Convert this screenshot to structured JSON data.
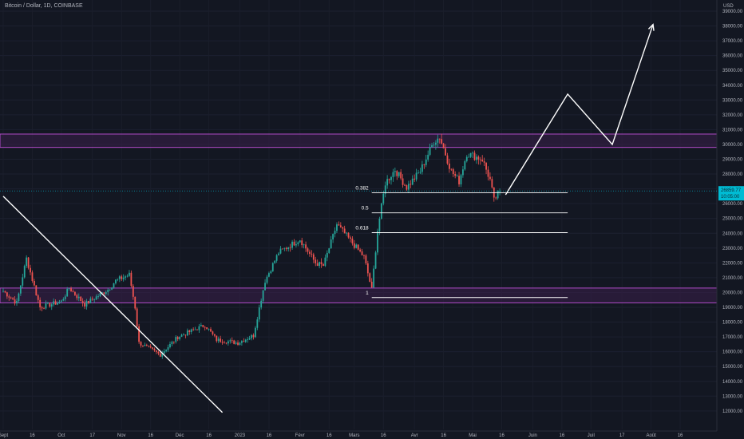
{
  "header": {
    "title": "Bitcoin / Dollar, 1D, COINBASE"
  },
  "price_axis": {
    "unit": "USD"
  },
  "last_price": {
    "value": "26859.77",
    "sub": "10:05:00",
    "color": "#00bcd4"
  },
  "colors": {
    "up": "#26a69a",
    "down": "#ef5350",
    "zone_border": "#b04bc8",
    "zone_fill": "#3a1f4a",
    "line": "#ffffff"
  },
  "chart_data": {
    "type": "candlestick",
    "title": "Bitcoin / Dollar, 1D, COINBASE",
    "xlabel": "",
    "ylabel": "USD",
    "ylim": [
      11500,
      39500
    ],
    "x_tick_labels": [
      "Sept",
      "16",
      "Oct",
      "17",
      "Nov",
      "16",
      "Déc",
      "16",
      "2023",
      "16",
      "Févr",
      "16",
      "Mars",
      "16",
      "Avr",
      "16",
      "Mai",
      "16",
      "Juin",
      "16",
      "Juil",
      "17",
      "Août",
      "16"
    ],
    "y_tick_labels": [
      "12000.00",
      "13000.00",
      "14000.00",
      "15000.00",
      "16000.00",
      "17000.00",
      "18000.00",
      "19000.00",
      "20000.00",
      "21000.00",
      "22000.00",
      "23000.00",
      "24000.00",
      "25000.00",
      "26000.00",
      "27000.00",
      "28000.00",
      "29000.00",
      "30000.00",
      "31000.00",
      "32000.00",
      "33000.00",
      "34000.00",
      "35000.00",
      "36000.00",
      "37000.00",
      "38000.00",
      "39000.00"
    ],
    "price_path_anchors": [
      {
        "date": "2022-09-01",
        "price": 20100
      },
      {
        "date": "2022-09-08",
        "price": 19300
      },
      {
        "date": "2022-09-13",
        "price": 22300
      },
      {
        "date": "2022-09-20",
        "price": 19000
      },
      {
        "date": "2022-10-01",
        "price": 19400
      },
      {
        "date": "2022-10-05",
        "price": 20300
      },
      {
        "date": "2022-10-13",
        "price": 19200
      },
      {
        "date": "2022-10-25",
        "price": 20200
      },
      {
        "date": "2022-10-29",
        "price": 20800
      },
      {
        "date": "2022-11-05",
        "price": 21200
      },
      {
        "date": "2022-11-08",
        "price": 19000
      },
      {
        "date": "2022-11-10",
        "price": 16600
      },
      {
        "date": "2022-11-21",
        "price": 15800
      },
      {
        "date": "2022-11-30",
        "price": 17000
      },
      {
        "date": "2022-12-14",
        "price": 17800
      },
      {
        "date": "2022-12-20",
        "price": 16800
      },
      {
        "date": "2022-12-31",
        "price": 16600
      },
      {
        "date": "2023-01-08",
        "price": 17100
      },
      {
        "date": "2023-01-14",
        "price": 20800
      },
      {
        "date": "2023-01-21",
        "price": 22700
      },
      {
        "date": "2023-02-01",
        "price": 23600
      },
      {
        "date": "2023-02-09",
        "price": 22000
      },
      {
        "date": "2023-02-13",
        "price": 21800
      },
      {
        "date": "2023-02-20",
        "price": 24600
      },
      {
        "date": "2023-02-27",
        "price": 23500
      },
      {
        "date": "2023-03-06",
        "price": 22400
      },
      {
        "date": "2023-03-10",
        "price": 20200
      },
      {
        "date": "2023-03-13",
        "price": 24200
      },
      {
        "date": "2023-03-17",
        "price": 27400
      },
      {
        "date": "2023-03-22",
        "price": 28300
      },
      {
        "date": "2023-03-28",
        "price": 27100
      },
      {
        "date": "2023-04-04",
        "price": 28200
      },
      {
        "date": "2023-04-11",
        "price": 30200
      },
      {
        "date": "2023-04-14",
        "price": 30500
      },
      {
        "date": "2023-04-20",
        "price": 28200
      },
      {
        "date": "2023-04-24",
        "price": 27500
      },
      {
        "date": "2023-04-28",
        "price": 29400
      },
      {
        "date": "2023-05-06",
        "price": 29000
      },
      {
        "date": "2023-05-10",
        "price": 27600
      },
      {
        "date": "2023-05-12",
        "price": 26200
      },
      {
        "date": "2023-05-15",
        "price": 26859.77
      }
    ],
    "resistance_zone": [
      29800,
      30700
    ],
    "support_zone": [
      19300,
      20300
    ],
    "fibonacci_levels": [
      {
        "label": "0.382",
        "price": 26730
      },
      {
        "label": "0.5",
        "price": 25380
      },
      {
        "label": "0.618",
        "price": 24040
      },
      {
        "label": "1",
        "price": 19660
      }
    ],
    "projection_path": [
      {
        "date": "2023-05-18",
        "price": 26600
      },
      {
        "date": "2023-06-19",
        "price": 33400
      },
      {
        "date": "2023-07-12",
        "price": 30000
      },
      {
        "date": "2023-08-02",
        "price": 38100
      }
    ],
    "downtrend_line": [
      {
        "date": "2022-09-01",
        "price": 26500
      },
      {
        "date": "2022-12-23",
        "price": 11900
      }
    ]
  }
}
